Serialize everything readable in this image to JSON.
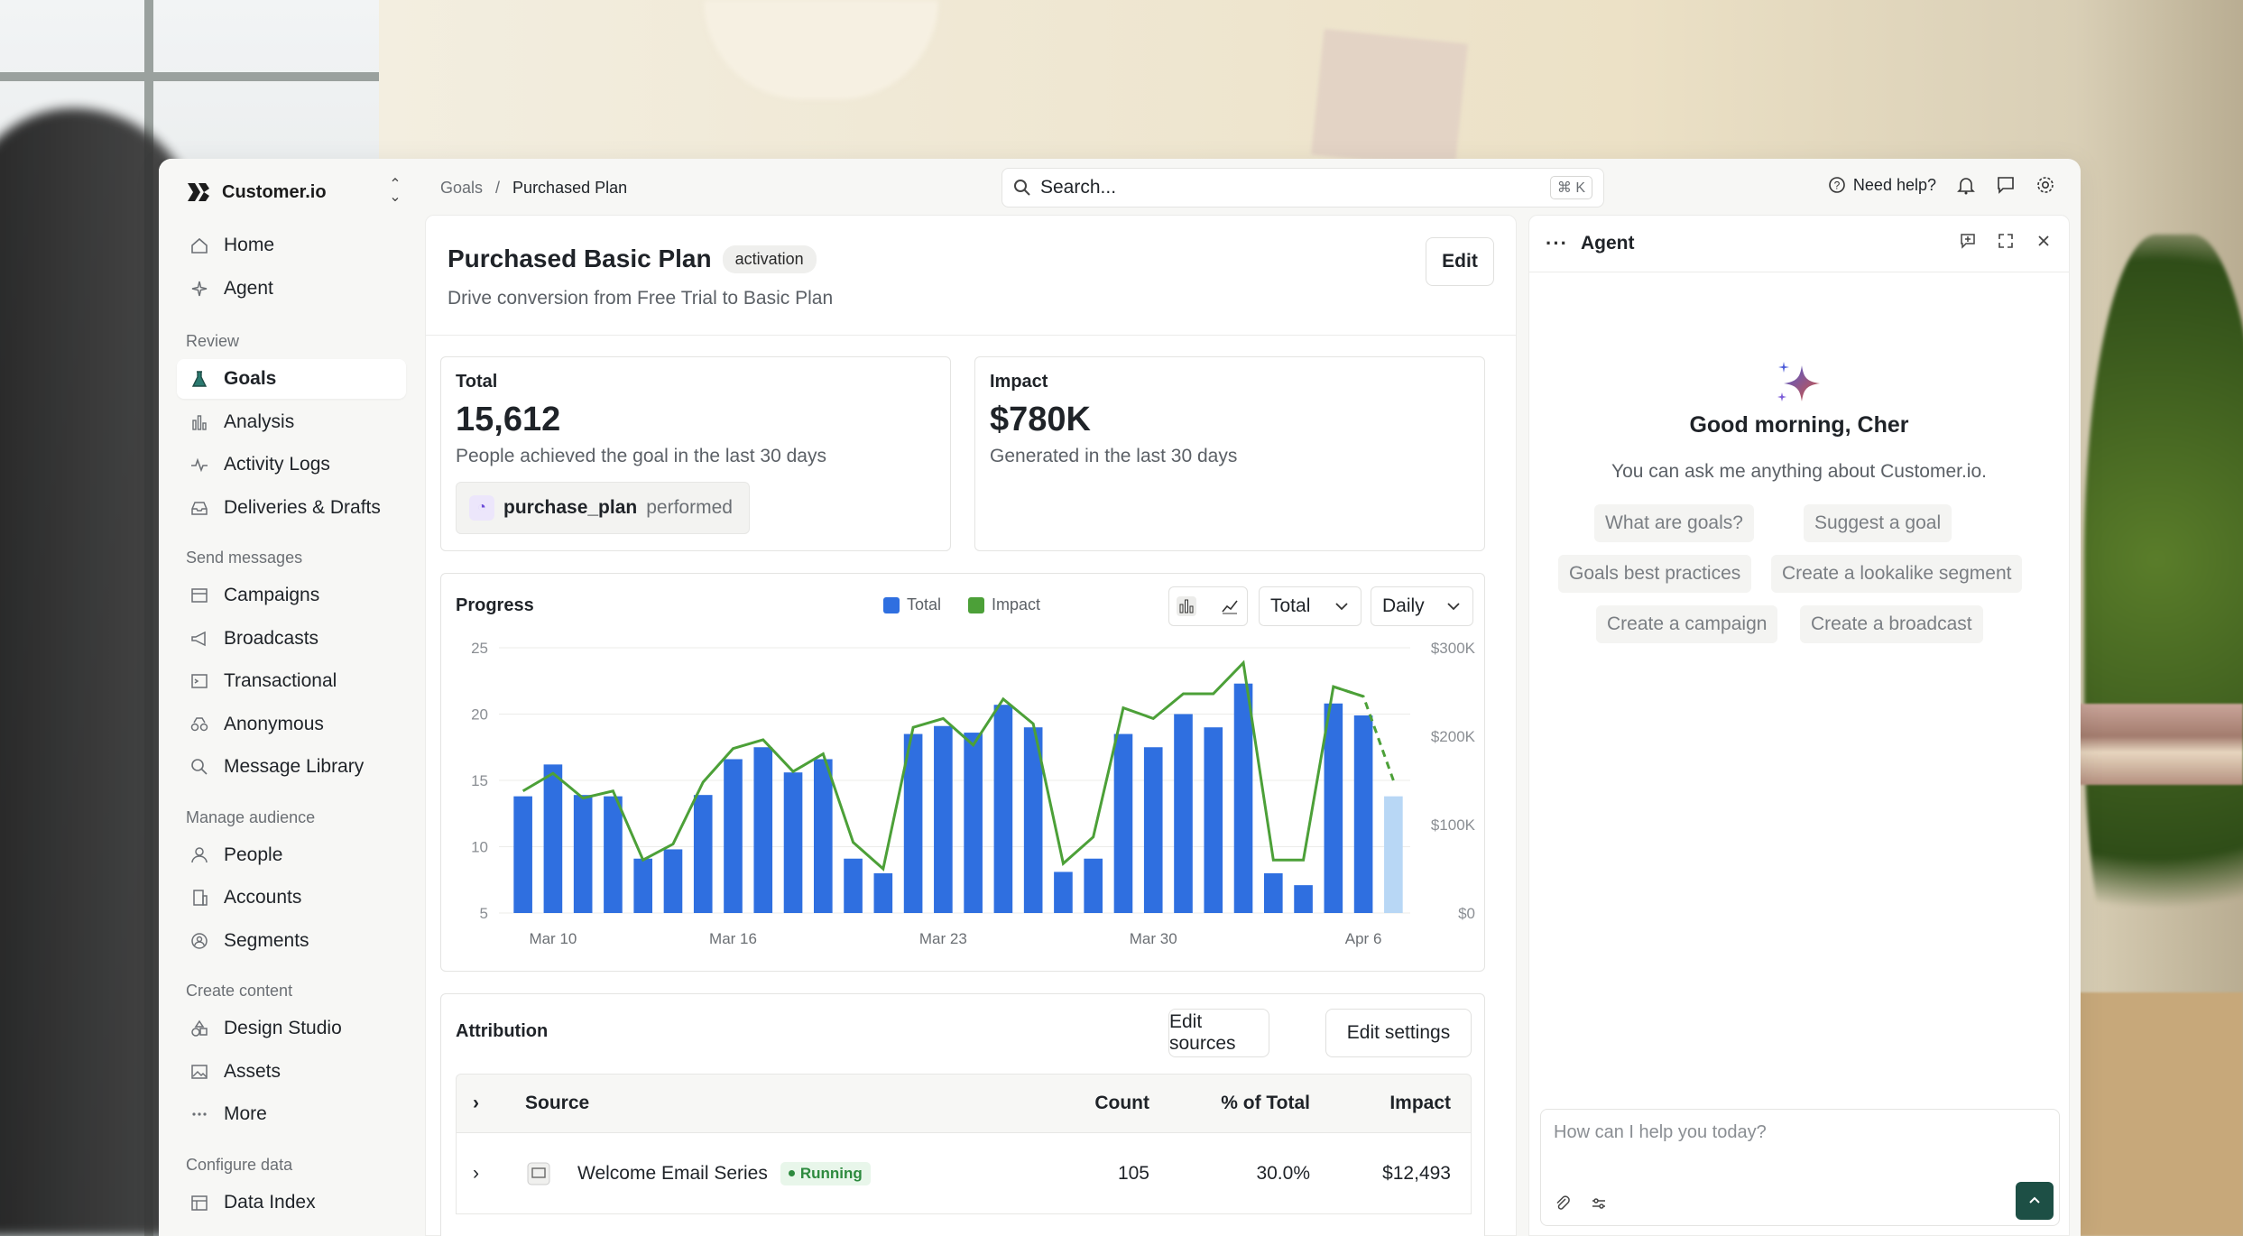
{
  "app": {
    "name": "Customer.io",
    "brand_color": "#1c1c1c"
  },
  "breadcrumb": {
    "parent": "Goals",
    "separator": "/",
    "current": "Purchased Plan"
  },
  "search": {
    "placeholder": "Search...",
    "shortcut": "⌘ K"
  },
  "topbar": {
    "help": "Need help?"
  },
  "sidebar": {
    "items_top": [
      {
        "label": "Home",
        "icon": "home-icon"
      },
      {
        "label": "Agent",
        "icon": "sparkle-icon"
      }
    ],
    "sections": [
      {
        "title": "Review",
        "items": [
          {
            "label": "Goals",
            "icon": "flask-icon",
            "active": true
          },
          {
            "label": "Analysis",
            "icon": "bar-chart-icon"
          },
          {
            "label": "Activity Logs",
            "icon": "pulse-icon"
          },
          {
            "label": "Deliveries & Drafts",
            "icon": "inbox-icon"
          }
        ]
      },
      {
        "title": "Send messages",
        "items": [
          {
            "label": "Campaigns",
            "icon": "campaign-icon"
          },
          {
            "label": "Broadcasts",
            "icon": "megaphone-icon"
          },
          {
            "label": "Transactional",
            "icon": "terminal-icon"
          },
          {
            "label": "Anonymous",
            "icon": "glasses-icon"
          },
          {
            "label": "Message Library",
            "icon": "search-icon"
          }
        ]
      },
      {
        "title": "Manage audience",
        "items": [
          {
            "label": "People",
            "icon": "person-icon"
          },
          {
            "label": "Accounts",
            "icon": "building-icon"
          },
          {
            "label": "Segments",
            "icon": "segment-icon"
          }
        ]
      },
      {
        "title": "Create content",
        "items": [
          {
            "label": "Design Studio",
            "icon": "shapes-icon"
          },
          {
            "label": "Assets",
            "icon": "image-icon"
          },
          {
            "label": "More",
            "icon": "more-icon"
          }
        ]
      },
      {
        "title": "Configure data",
        "items": [
          {
            "label": "Data Index",
            "icon": "database-icon"
          }
        ]
      }
    ]
  },
  "page": {
    "title": "Purchased Basic Plan",
    "tag": "activation",
    "subtitle": "Drive conversion from Free Trial to Basic Plan",
    "edit": "Edit"
  },
  "stats": {
    "total": {
      "label": "Total",
      "value": "15,612",
      "desc": "People achieved the goal in the last 30 days",
      "event_name": "purchase_plan",
      "event_suffix": "performed"
    },
    "impact": {
      "label": "Impact",
      "value": "$780K",
      "desc": "Generated in the last 30 days"
    }
  },
  "progress": {
    "title": "Progress",
    "legend_total": "Total",
    "legend_impact": "Impact",
    "metric_select": "Total",
    "interval_select": "Daily",
    "colors": {
      "total": "#2f6fe0",
      "impact": "#4ca038",
      "forecast": "#b8d7f5"
    }
  },
  "chart_data": {
    "type": "bar",
    "title": "Progress",
    "x_tick_labels": [
      "Mar 10",
      "Mar 16",
      "Mar 23",
      "Mar 30",
      "Apr 6"
    ],
    "y_ticks": [
      "5",
      "10",
      "15",
      "20",
      "25"
    ],
    "y2_ticks": [
      "$0",
      "$100K",
      "$200K",
      "$300K"
    ],
    "ylim": [
      5,
      25
    ],
    "y2lim": [
      0,
      300000
    ],
    "grid": true,
    "legend": "top",
    "series": [
      {
        "name": "Total",
        "type": "bar",
        "values": [
          13.8,
          16.2,
          13.9,
          13.8,
          9.1,
          9.8,
          13.9,
          16.6,
          17.5,
          15.6,
          16.6,
          9.1,
          8.0,
          18.5,
          19.1,
          18.6,
          20.7,
          19.0,
          8.1,
          9.1,
          18.5,
          17.5,
          20.0,
          19.0,
          22.3,
          8.0,
          7.1,
          20.8,
          19.9,
          13.8
        ],
        "forecast_last": true
      },
      {
        "name": "Impact",
        "type": "line",
        "values": [
          138000,
          158000,
          130000,
          138000,
          60000,
          78000,
          148000,
          186000,
          196000,
          160000,
          180000,
          80000,
          50000,
          210000,
          220000,
          190000,
          242000,
          214000,
          56000,
          86000,
          232000,
          220000,
          248000,
          248000,
          283000,
          60000,
          60000,
          256000,
          245000,
          150000
        ],
        "forecast_last_points": 2
      }
    ]
  },
  "attribution": {
    "title": "Attribution",
    "edit_sources": "Edit sources",
    "edit_settings": "Edit settings",
    "columns": [
      "Source",
      "Count",
      "% of Total",
      "Impact"
    ],
    "rows": [
      {
        "source": "Welcome Email Series",
        "status": "Running",
        "count": "105",
        "pct": "30.0%",
        "impact": "$12,493"
      }
    ]
  },
  "agent": {
    "title": "Agent",
    "greeting": "Good morning, Cher",
    "intro": "You can ask me anything about Customer.io.",
    "suggestions": [
      "What are goals?",
      "Suggest a goal",
      "Goals best practices",
      "Create a lookalike segment",
      "Create a campaign",
      "Create a broadcast"
    ],
    "input_placeholder": "How can I help you today?"
  }
}
